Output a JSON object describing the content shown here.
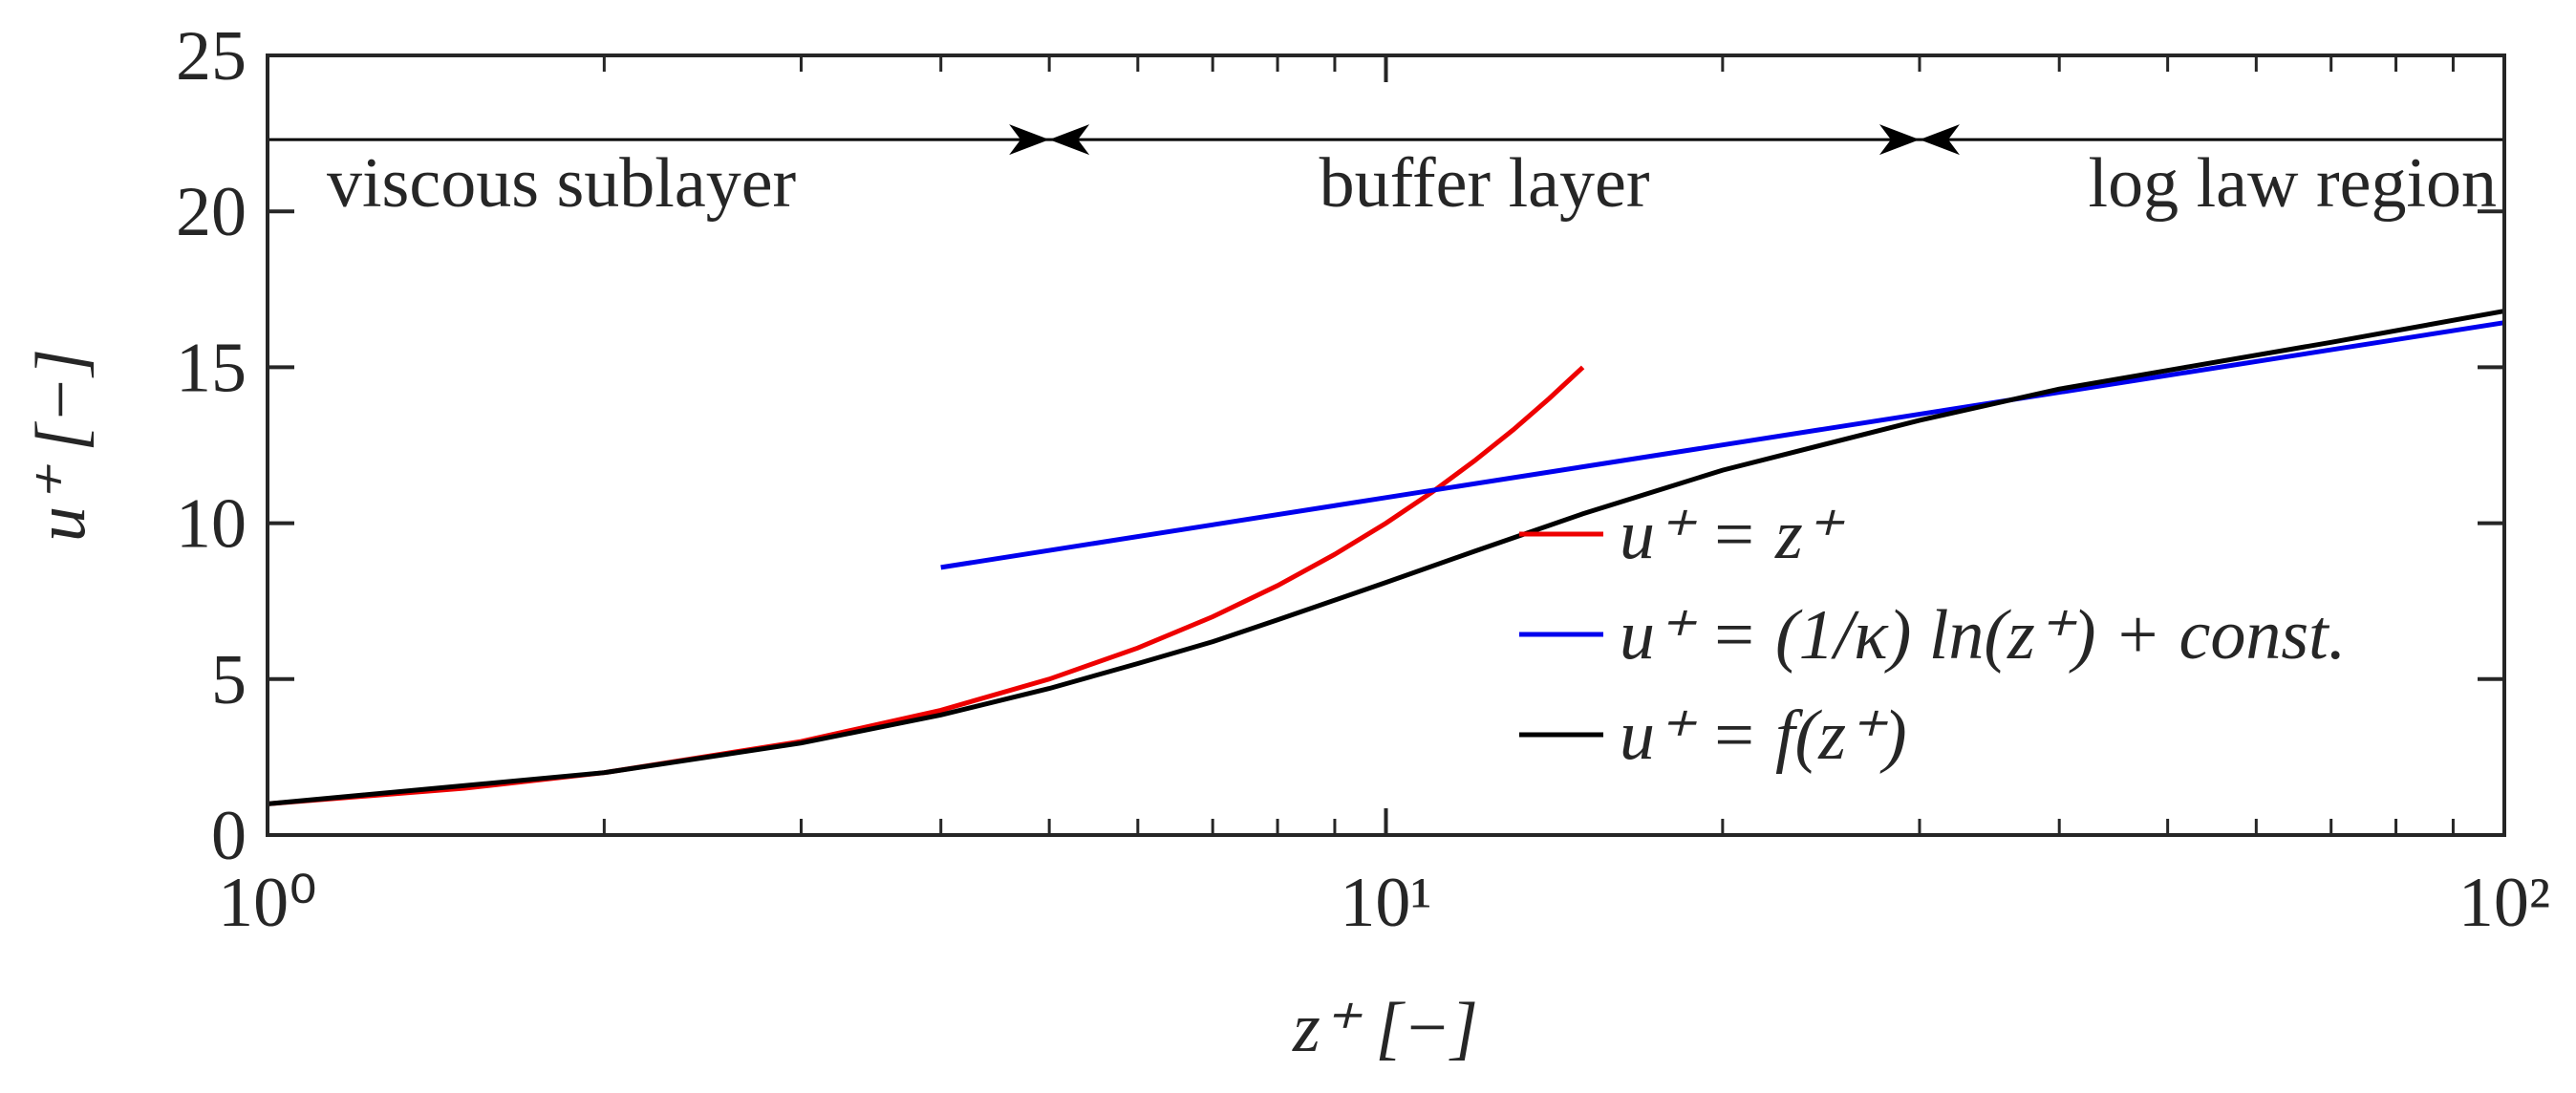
{
  "chart_data": {
    "type": "line",
    "xlabel": "z⁺ [−]",
    "ylabel": "u⁺ [−]",
    "xscale": "log",
    "xlim": [
      1,
      100
    ],
    "ylim": [
      0,
      25
    ],
    "xticks": [
      {
        "value": 1,
        "label": "10⁰"
      },
      {
        "value": 10,
        "label": "10¹"
      },
      {
        "value": 100,
        "label": "10²"
      }
    ],
    "xminorticks": [
      2,
      3,
      4,
      5,
      6,
      7,
      8,
      9,
      20,
      30,
      40,
      50,
      60,
      70,
      80,
      90
    ],
    "yticks": [
      0,
      5,
      10,
      15,
      20,
      25
    ],
    "legend": "lower right",
    "region_labels": [
      "viscous sublayer",
      "buffer layer",
      "log law region"
    ],
    "region_boundaries": [
      5,
      30
    ],
    "region_arrow_y": 22.3,
    "series": [
      {
        "name": "u⁺ = z⁺",
        "color": "#ee0000",
        "x": [
          1,
          1.5,
          2,
          3,
          4,
          5,
          6,
          7,
          8,
          9,
          10,
          11,
          12,
          13,
          14,
          15
        ],
        "values": [
          1,
          1.5,
          2,
          3,
          4,
          5,
          6,
          7,
          8,
          9,
          10,
          11,
          12,
          13,
          14,
          15
        ]
      },
      {
        "name": "u⁺ = (1/κ) ln(z⁺) + const.",
        "color": "#0000ee",
        "x": [
          4,
          10,
          20,
          50,
          100
        ],
        "values": [
          8.58,
          10.82,
          12.51,
          14.74,
          16.43
        ]
      },
      {
        "name": "u⁺ = f(z⁺)",
        "color": "#000000",
        "x": [
          1,
          2,
          3,
          4,
          5,
          6,
          7,
          8,
          10,
          12,
          15,
          20,
          30,
          40,
          50,
          70,
          100
        ],
        "values": [
          1,
          2,
          2.95,
          3.85,
          4.7,
          5.5,
          6.2,
          6.9,
          8.1,
          9.1,
          10.3,
          11.7,
          13.3,
          14.3,
          14.9,
          15.8,
          16.8
        ]
      }
    ]
  }
}
